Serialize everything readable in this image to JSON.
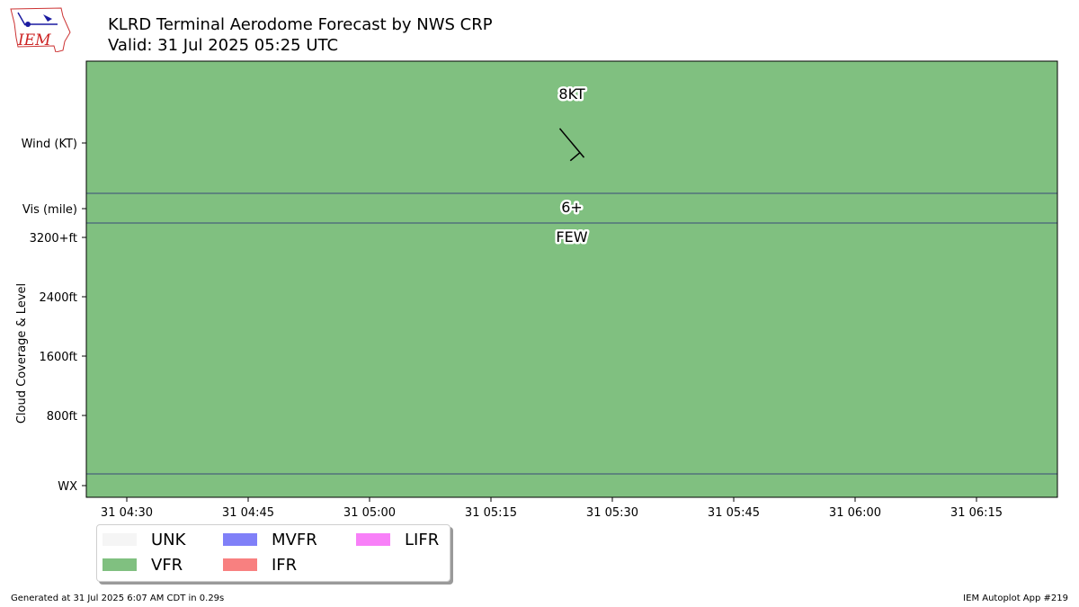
{
  "header": {
    "title_line1": "KLRD Terminal Aerodome Forecast by NWS CRP",
    "title_line2": "Valid: 31 Jul 2025 05:25 UTC",
    "logo_text": "IEM"
  },
  "footer": {
    "generated": "Generated at 31 Jul 2025 6:07 AM CDT in 0.29s",
    "app": "IEM Autoplot App #219"
  },
  "colors": {
    "VFR": "#80c080",
    "UNK": "#f5f5f5",
    "MVFR": "#8080f8",
    "IFR": "#f88080",
    "LIFR": "#f880f8",
    "divider": "#3a4a7a"
  },
  "legend": [
    {
      "label": "UNK",
      "color": "#f5f5f5"
    },
    {
      "label": "VFR",
      "color": "#80c080"
    },
    {
      "label": "MVFR",
      "color": "#8080f8"
    },
    {
      "label": "IFR",
      "color": "#f88080"
    },
    {
      "label": "LIFR",
      "color": "#f880f8"
    }
  ],
  "chart_data": {
    "type": "timeline",
    "x_ticks": [
      "31 04:30",
      "31 04:45",
      "31 05:00",
      "31 05:15",
      "31 05:30",
      "31 05:45",
      "31 06:00",
      "31 06:15"
    ],
    "x_range": [
      "2025-07-31T04:25Z",
      "2025-07-31T06:25Z"
    ],
    "y_ticks": [
      "Wind (KT)",
      "Vis (mile)",
      "3200+ft",
      "2400ft",
      "1600ft",
      "800ft",
      "WX"
    ],
    "ylabel": "Cloud Coverage & Level",
    "cloud_levels_ft": [
      3200,
      2400,
      1600,
      800
    ],
    "category": "VFR",
    "forecast": {
      "time": "2025-07-31T05:25Z",
      "wind_label": "8KT",
      "wind_speed_kt": 8,
      "wind_direction_deg": 320,
      "visibility_label": "6+",
      "cloud_label": "FEW"
    }
  }
}
